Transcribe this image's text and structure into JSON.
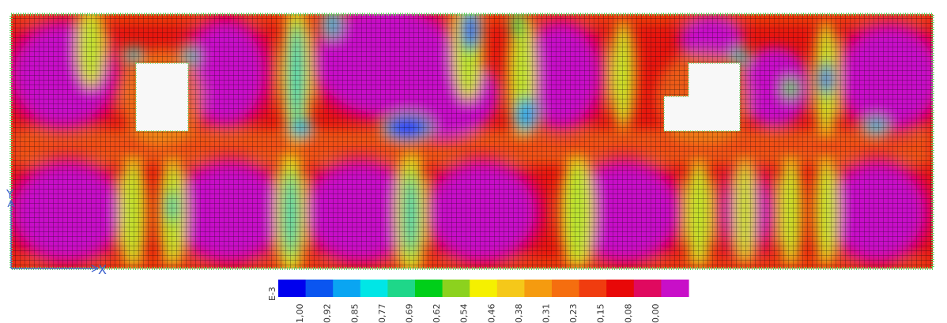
{
  "colors": {
    "background": "#ffffff",
    "mesh_outer": "#60d860",
    "mesh_inner": "#0a0a0a",
    "axis": "#3a5fcd",
    "scale": [
      "#0000ee",
      "#0a55f0",
      "#0aa5f2",
      "#00e6e6",
      "#1ed789",
      "#00cf19",
      "#8cd21e",
      "#f5f000",
      "#f5c819",
      "#f59b0f",
      "#f56e0f",
      "#f03c0f",
      "#e80808",
      "#e0095f",
      "#c80fc8"
    ],
    "field": [
      "#2828ff",
      "#00a0ff",
      "#00d2d2",
      "#50dc50",
      "#b4e632",
      "#f0e614",
      "#f5b41e",
      "#f57814",
      "#f03214",
      "#e1005a",
      "#c80ac8"
    ]
  },
  "axis": {
    "x_label": "X",
    "y_label": "Y"
  },
  "legend": {
    "exponent": "E-3",
    "ticks": [
      "1,00",
      "0,92",
      "0,85",
      "0,77",
      "0,69",
      "0,62",
      "0,54",
      "0,46",
      "0,38",
      "0,31",
      "0,23",
      "0,15",
      "0,08",
      "0,00"
    ]
  }
}
